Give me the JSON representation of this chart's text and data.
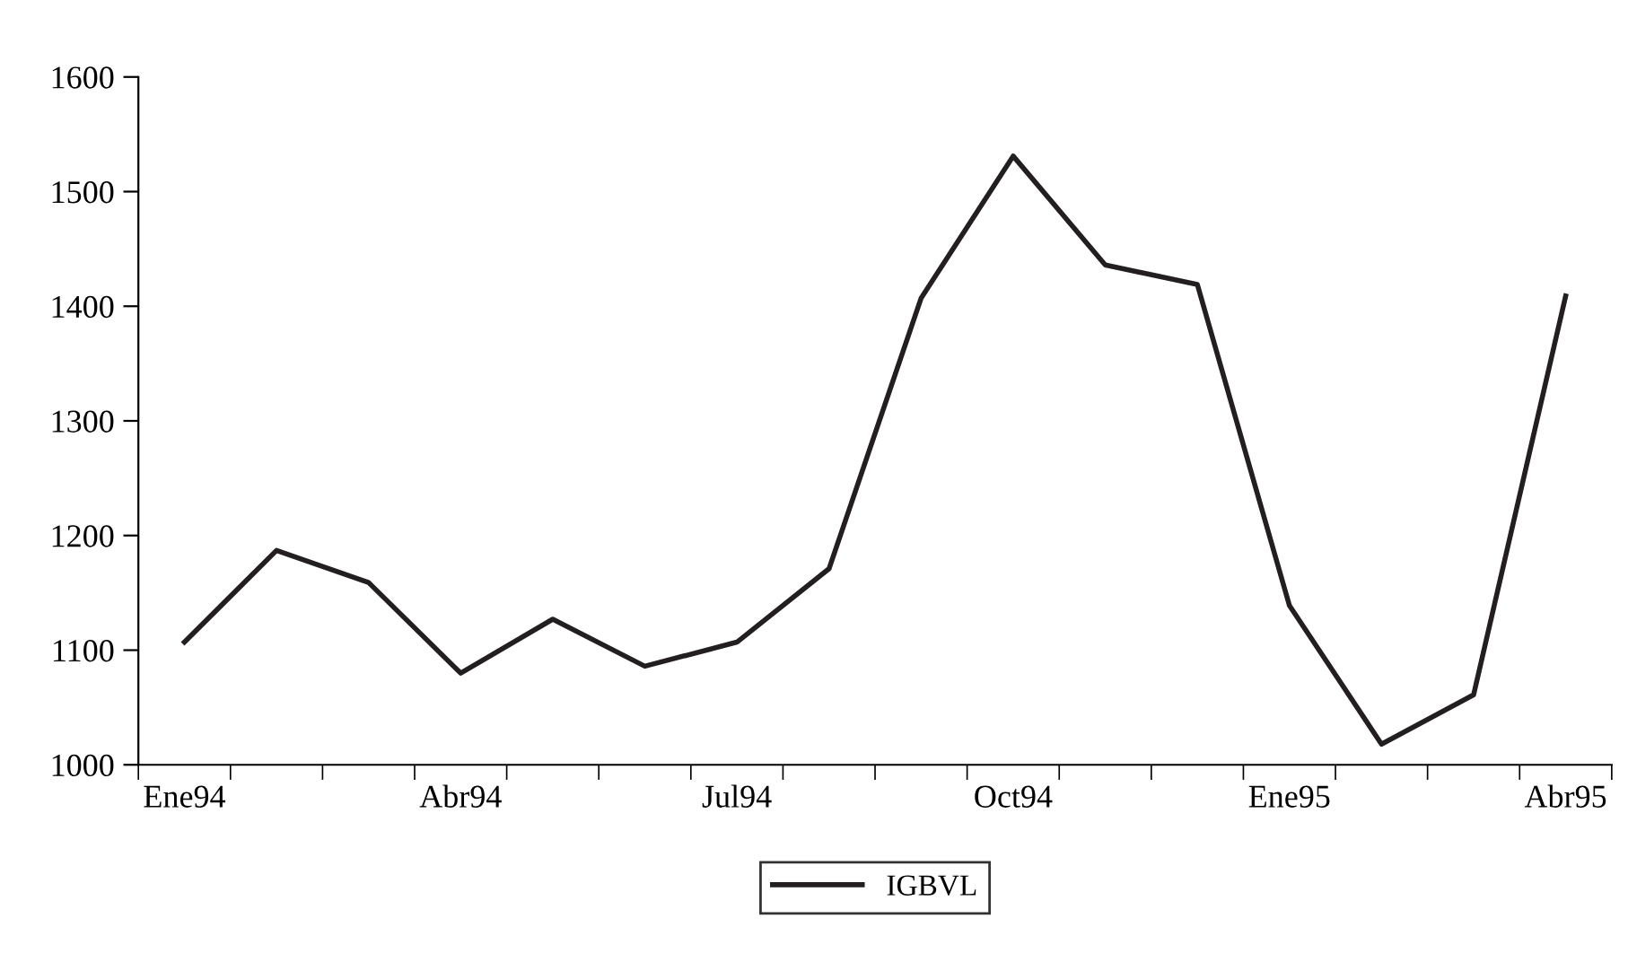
{
  "chart_data": {
    "type": "line",
    "categories": [
      "Ene94",
      null,
      null,
      "Abr94",
      null,
      null,
      "Jul94",
      null,
      null,
      "Oct94",
      null,
      null,
      "Ene95",
      null,
      null,
      "Abr95"
    ],
    "series": [
      {
        "name": "IGBVL",
        "color": "#231f20",
        "values": [
          1107,
          1187,
          1159,
          1080,
          1127,
          1086,
          1107,
          1171,
          1407,
          1531,
          1436,
          1419,
          1139,
          1018,
          1061,
          1409
        ]
      }
    ],
    "ylim": [
      1000,
      1600
    ],
    "yticks": [
      1000,
      1100,
      1200,
      1300,
      1400,
      1500,
      1600
    ],
    "grid": false,
    "legend": "bottom",
    "marker": "none",
    "line_style": "solid"
  }
}
